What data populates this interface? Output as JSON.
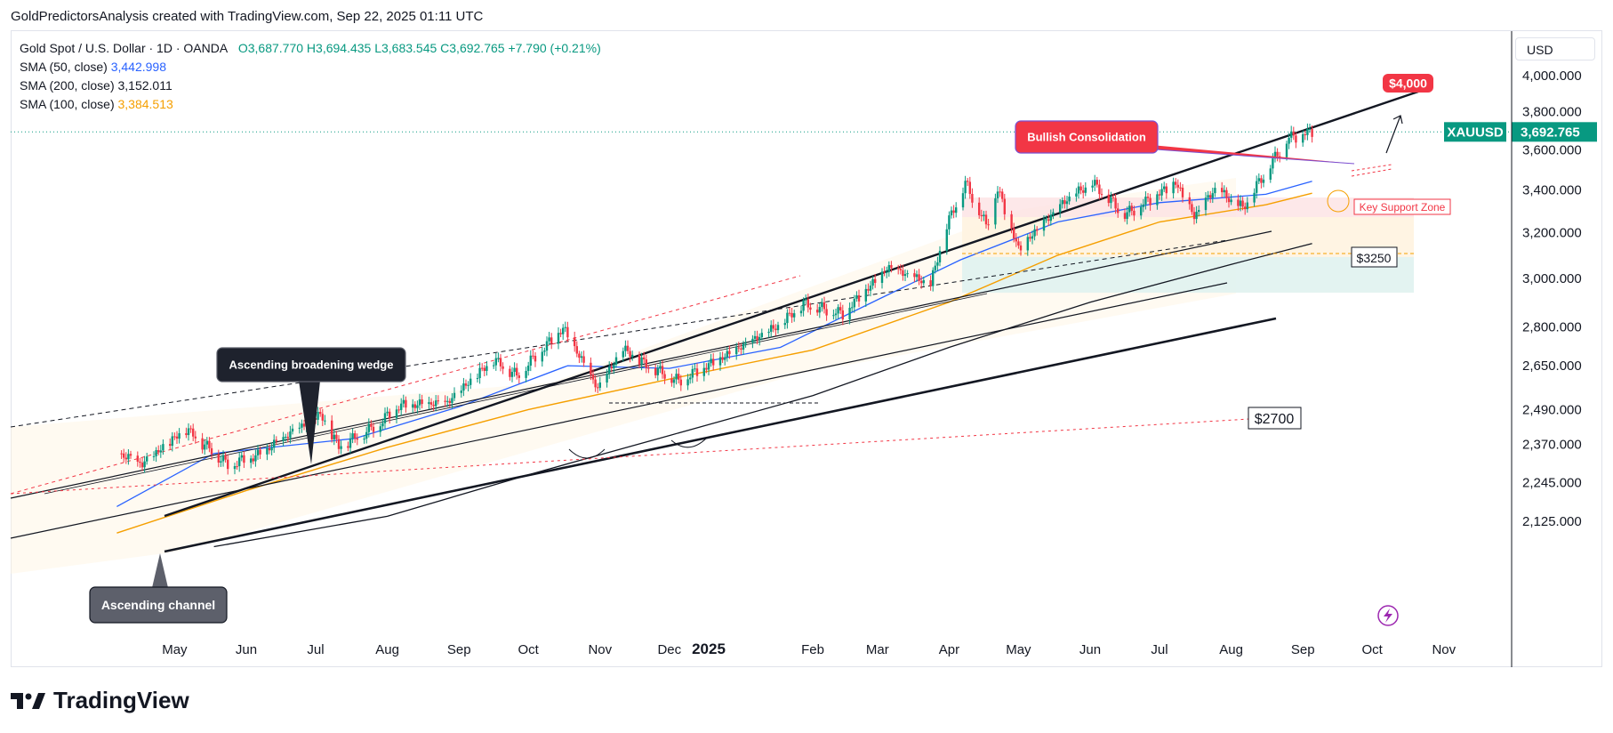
{
  "header": {
    "text": "GoldPredictorsAnalysis created with TradingView.com, Sep 22, 2025 01:11 UTC"
  },
  "legend": {
    "symbol": "Gold Spot / U.S. Dollar · 1D · OANDA",
    "ohlc": "O3,687.770  H3,694.435  L3,683.545  C3,692.765  +7.790 (+0.21%)",
    "sma50_label": "SMA (50, close)",
    "sma50_value": "3,442.998",
    "sma200_label": "SMA (200, close)",
    "sma200_value": "3,152.011",
    "sma100_label": "SMA (100, close)",
    "sma100_value": "3,384.513"
  },
  "currency": "USD",
  "footer": {
    "brand": "TradingView"
  },
  "colors": {
    "up": "#089981",
    "down": "#f23645",
    "sma50": "#2962ff",
    "sma200": "#131722",
    "sma100": "#f59f00",
    "accent_red": "#f23645",
    "price_label": "#089981",
    "callout_dark": "#1e222d",
    "callout_gray": "#5d606b"
  },
  "chart_data": {
    "type": "candlestick",
    "symbol": "XAUUSD",
    "last_price": "3,692.765",
    "x_tick_labels": [
      "May",
      "Jun",
      "Jul",
      "Aug",
      "Sep",
      "Oct",
      "Nov",
      "Dec",
      "2025",
      "Feb",
      "Mar",
      "Apr",
      "May",
      "Jun",
      "Jul",
      "Aug",
      "Sep",
      "Oct",
      "Nov"
    ],
    "y_tick_labels": [
      "4,000.000",
      "3,800.000",
      "3,600.000",
      "3,400.000",
      "3,200.000",
      "3,000.000",
      "2,800.000",
      "2,650.000",
      "2,490.000",
      "2,370.000",
      "2,245.000",
      "2,125.000"
    ],
    "y_tick_values": [
      4000,
      3800,
      3600,
      3400,
      3200,
      3000,
      2800,
      2650,
      2490,
      2370,
      2245,
      2125
    ],
    "ylim": [
      2060,
      4130
    ],
    "y_scale": "log",
    "price_path": [
      [
        "2024-04-20",
        2340
      ],
      [
        "2024-05-01",
        2300
      ],
      [
        "2024-05-20",
        2420
      ],
      [
        "2024-06-07",
        2300
      ],
      [
        "2024-06-20",
        2330
      ],
      [
        "2024-07-17",
        2470
      ],
      [
        "2024-07-25",
        2360
      ],
      [
        "2024-08-10",
        2430
      ],
      [
        "2024-08-20",
        2500
      ],
      [
        "2024-09-10",
        2510
      ],
      [
        "2024-09-30",
        2670
      ],
      [
        "2024-10-10",
        2610
      ],
      [
        "2024-10-30",
        2790
      ],
      [
        "2024-11-14",
        2560
      ],
      [
        "2024-11-25",
        2710
      ],
      [
        "2024-12-05",
        2650
      ],
      [
        "2024-12-19",
        2590
      ],
      [
        "2025-01-10",
        2690
      ],
      [
        "2025-01-31",
        2800
      ],
      [
        "2025-02-11",
        2890
      ],
      [
        "2025-02-28",
        2850
      ],
      [
        "2025-03-20",
        3040
      ],
      [
        "2025-04-07",
        2970
      ],
      [
        "2025-04-14",
        3230
      ],
      [
        "2025-04-22",
        3430
      ],
      [
        "2025-05-01",
        3230
      ],
      [
        "2025-05-06",
        3400
      ],
      [
        "2025-05-15",
        3120
      ],
      [
        "2025-06-05",
        3350
      ],
      [
        "2025-06-16",
        3430
      ],
      [
        "2025-06-30",
        3280
      ],
      [
        "2025-07-22",
        3430
      ],
      [
        "2025-07-30",
        3270
      ],
      [
        "2025-08-08",
        3400
      ],
      [
        "2025-08-20",
        3310
      ],
      [
        "2025-09-02",
        3540
      ],
      [
        "2025-09-09",
        3660
      ],
      [
        "2025-09-19",
        3692.765
      ]
    ],
    "sma50": [
      [
        "2024-04-20",
        2170
      ],
      [
        "2024-06-01",
        2340
      ],
      [
        "2024-08-01",
        2390
      ],
      [
        "2024-09-15",
        2500
      ],
      [
        "2024-11-01",
        2650
      ],
      [
        "2024-12-15",
        2640
      ],
      [
        "2025-02-01",
        2720
      ],
      [
        "2025-03-15",
        2910
      ],
      [
        "2025-04-20",
        3080
      ],
      [
        "2025-06-01",
        3250
      ],
      [
        "2025-07-15",
        3340
      ],
      [
        "2025-08-30",
        3380
      ],
      [
        "2025-09-19",
        3443
      ]
    ],
    "sma100": [
      [
        "2024-04-20",
        2090
      ],
      [
        "2024-06-15",
        2220
      ],
      [
        "2024-08-15",
        2360
      ],
      [
        "2024-10-15",
        2490
      ],
      [
        "2024-12-15",
        2600
      ],
      [
        "2025-02-15",
        2710
      ],
      [
        "2025-04-15",
        2900
      ],
      [
        "2025-06-01",
        3100
      ],
      [
        "2025-07-15",
        3250
      ],
      [
        "2025-08-30",
        3330
      ],
      [
        "2025-09-19",
        3385
      ]
    ],
    "sma200": [
      [
        "2024-06-01",
        2050
      ],
      [
        "2024-08-15",
        2140
      ],
      [
        "2024-10-15",
        2270
      ],
      [
        "2024-12-15",
        2400
      ],
      [
        "2025-02-15",
        2540
      ],
      [
        "2025-04-15",
        2720
      ],
      [
        "2025-06-15",
        2900
      ],
      [
        "2025-08-15",
        3060
      ],
      [
        "2025-09-19",
        3152
      ]
    ],
    "annotations": {
      "wedge_label": "Ascending broadening wedge",
      "channel_label": "Ascending channel",
      "consolidation_label": "Bullish Consolidation",
      "support_label": "Key Support Zone",
      "target_label": "$4,000",
      "level_3250": "$3250",
      "level_2700": "$2700"
    }
  }
}
